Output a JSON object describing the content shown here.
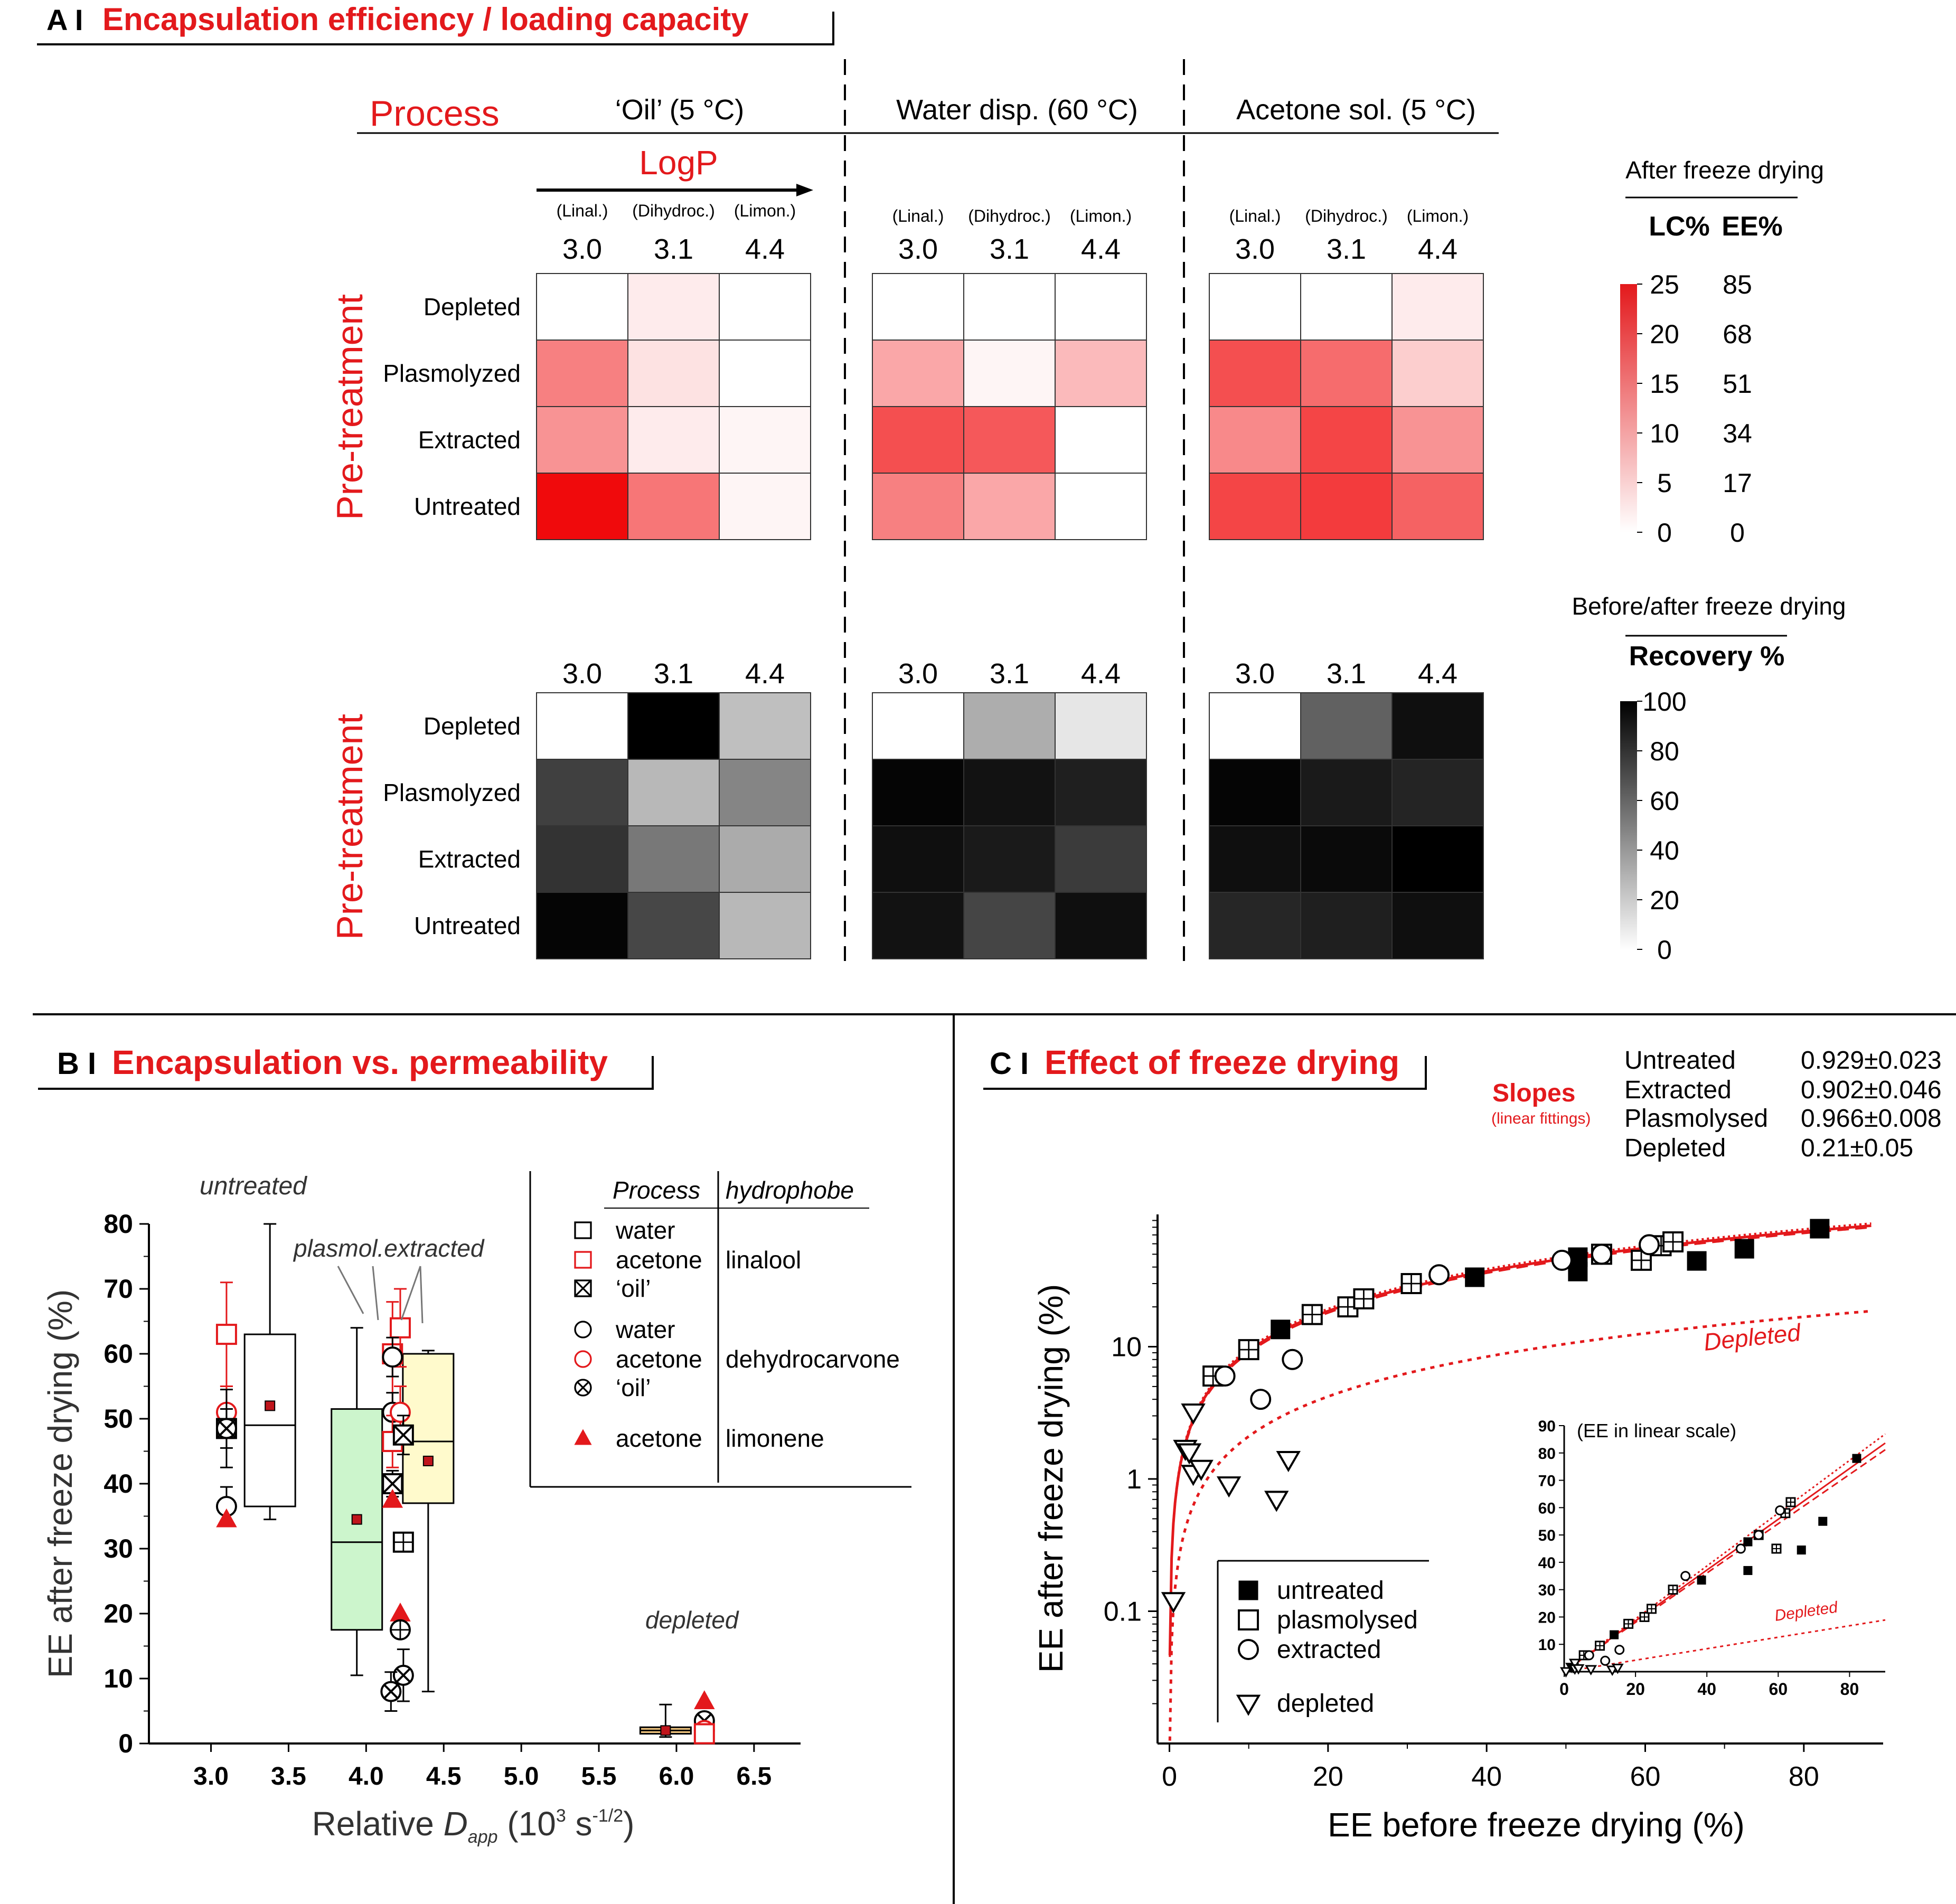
{
  "figure": {
    "panelA": {
      "letter": "A I",
      "title": "Encapsulation efficiency / loading capacity",
      "process_label": "Process",
      "processes": [
        "‘Oil’ (5 °C)",
        "Water disp. (60 °C)",
        "Acetone sol. (5 °C)"
      ],
      "logp_label": "LogP",
      "hydrophobe_short": [
        "(Linal.)",
        "(Dihydroc.)",
        "(Limon.)"
      ],
      "logp_values": [
        "3.0",
        "3.1",
        "4.4"
      ],
      "pretreatment_label": "Pre-treatment",
      "rows": [
        "Depleted",
        "Plasmolyzed",
        "Extracted",
        "Untreated"
      ],
      "legend_top": {
        "title": "After freeze drying",
        "col1": "LC%",
        "col2": "EE%",
        "lc_ticks": [
          "25",
          "20",
          "15",
          "10",
          "5",
          "0"
        ],
        "ee_ticks": [
          "85",
          "68",
          "51",
          "34",
          "17",
          "0"
        ]
      },
      "legend_bottom": {
        "title": "Before/after freeze drying",
        "subtitle": "Recovery %",
        "ticks": [
          "100",
          "80",
          "60",
          "40",
          "20",
          "0"
        ]
      },
      "colors": {
        "accent": "#e3191c",
        "dark": "#000000"
      }
    },
    "panelB": {
      "letter": "B I",
      "title": "Encapsulation vs. permeability",
      "labels": {
        "untreated": "untreated",
        "plasmol_extracted": "plasmol.extracted",
        "depleted": "depleted"
      },
      "legend": {
        "col_process": "Process",
        "col_hydrophobe": "hydrophobe",
        "rows": [
          {
            "process": "water",
            "symbol": "square",
            "color": "#000000"
          },
          {
            "process": "acetone",
            "symbol": "square",
            "color": "#e3191c"
          },
          {
            "process": "‘oil’",
            "symbol": "square-x",
            "color": "#000000"
          },
          {
            "process": "water",
            "symbol": "circle",
            "color": "#000000"
          },
          {
            "process": "acetone",
            "symbol": "circle",
            "color": "#e3191c"
          },
          {
            "process": "‘oil’",
            "symbol": "circle-x",
            "color": "#000000"
          },
          {
            "process": "acetone",
            "symbol": "triangle",
            "color": "#e3191c"
          }
        ],
        "hydrophobes": [
          "linalool",
          "dehydrocarvone",
          "limonene"
        ]
      }
    },
    "panelC": {
      "letter": "C I",
      "title": "Effect of freeze drying",
      "slopes_label": "Slopes",
      "slopes_sub": "(linear fittings)",
      "slopes": [
        {
          "name": "Untreated",
          "value": "0.929±0.023"
        },
        {
          "name": "Extracted",
          "value": "0.902±0.046"
        },
        {
          "name": "Plasmolysed",
          "value": "0.966±0.008"
        },
        {
          "name": "Depleted",
          "value": "0.21±0.05"
        }
      ],
      "depleted_label": "Depleted",
      "legend": [
        "untreated",
        "plasmolysed",
        "extracted",
        "depleted"
      ],
      "inset_title": "(EE in linear scale)",
      "inset_depleted": "Depleted"
    }
  },
  "chart_data": [
    {
      "type": "heatmap",
      "id": "A_top",
      "title": "After freeze drying (LC%)",
      "rows": [
        "Depleted",
        "Plasmolyzed",
        "Extracted",
        "Untreated"
      ],
      "columns": [
        "3.0",
        "3.1",
        "4.4"
      ],
      "groups": [
        {
          "process": "‘Oil’ (5 °C)",
          "values": [
            [
              0,
              2,
              0
            ],
            [
              13,
              3,
              0
            ],
            [
              11,
              2,
              1
            ],
            [
              25,
              14,
              1
            ]
          ]
        },
        {
          "process": "Water disp. (60 °C)",
          "values": [
            [
              0,
              0,
              0
            ],
            [
              9,
              1,
              7
            ],
            [
              18,
              17,
              0
            ],
            [
              13,
              9,
              0
            ]
          ]
        },
        {
          "process": "Acetone sol. (5 °C)",
          "values": [
            [
              0,
              0,
              2
            ],
            [
              18,
              15,
              5
            ],
            [
              12,
              19,
              11
            ],
            [
              19,
              20,
              16
            ]
          ]
        }
      ],
      "scale": {
        "min": 0,
        "max": 25
      }
    },
    {
      "type": "heatmap",
      "id": "A_bottom",
      "title": "Recovery %",
      "rows": [
        "Depleted",
        "Plasmolyzed",
        "Extracted",
        "Untreated"
      ],
      "columns": [
        "3.0",
        "3.1",
        "4.4"
      ],
      "groups": [
        {
          "process": "‘Oil’ (5 °C)",
          "values": [
            [
              0,
              100,
              25
            ],
            [
              75,
              28,
              48
            ],
            [
              80,
              53,
              33
            ],
            [
              98,
              72,
              28
            ]
          ]
        },
        {
          "process": "Water disp. (60 °C)",
          "values": [
            [
              0,
              32,
              10
            ],
            [
              98,
              93,
              88
            ],
            [
              94,
              90,
              77
            ],
            [
              93,
              73,
              94
            ]
          ]
        },
        {
          "process": "Acetone sol. (5 °C)",
          "values": [
            [
              0,
              62,
              94
            ],
            [
              98,
              90,
              86
            ],
            [
              94,
              96,
              100
            ],
            [
              85,
              88,
              94
            ]
          ]
        }
      ],
      "scale": {
        "min": 0,
        "max": 100
      }
    },
    {
      "type": "scatter",
      "id": "B",
      "title": "Encapsulation vs. permeability",
      "xlabel": "Relative Dapp (10³ s-1/2)",
      "ylabel": "EE after freeze drying (%)",
      "xlim": [
        2.6,
        6.8
      ],
      "ylim": [
        0,
        80
      ],
      "xticks": [
        "3.0",
        "3.5",
        "4.0",
        "4.5",
        "5.0",
        "5.5",
        "6.0",
        "6.5"
      ],
      "yticks": [
        "0",
        "10",
        "20",
        "30",
        "40",
        "50",
        "60",
        "70",
        "80"
      ],
      "boxes": [
        {
          "name": "untreated",
          "x": 3.38,
          "q1": 36.5,
          "median": 49,
          "q3": 63,
          "min": 34.5,
          "max": 80,
          "mean": 52,
          "fill": "#ffffff"
        },
        {
          "name": "plasmolyzed",
          "x": 3.94,
          "q1": 17.5,
          "median": 31,
          "q3": 51.5,
          "min": 10.5,
          "max": 64,
          "mean": 34.5,
          "fill": "#ccf5cc"
        },
        {
          "name": "extracted",
          "x": 4.4,
          "q1": 37,
          "median": 46.5,
          "q3": 60,
          "min": 8,
          "max": 60.5,
          "mean": 43.5,
          "fill": "#fffacc"
        },
        {
          "name": "depleted",
          "x": 5.93,
          "q1": 1.5,
          "median": 2,
          "q3": 2.5,
          "min": 1,
          "max": 6,
          "mean": 2,
          "fill": "#f5c880"
        }
      ],
      "points": [
        {
          "x": 3.1,
          "y": 63,
          "sym": "square",
          "color": "#e3191c",
          "err": 8
        },
        {
          "x": 3.1,
          "y": 51,
          "sym": "circle",
          "color": "#e3191c",
          "err": 4
        },
        {
          "x": 3.1,
          "y": 48.5,
          "sym": "square-x",
          "color": "#000000",
          "err": 3
        },
        {
          "x": 3.1,
          "y": 48.5,
          "sym": "circle-x",
          "color": "#000000",
          "err": 6
        },
        {
          "x": 3.1,
          "y": 36.5,
          "sym": "circle",
          "color": "#000000",
          "err": 3
        },
        {
          "x": 3.1,
          "y": 34.5,
          "sym": "triangle",
          "color": "#e3191c",
          "err": 0
        },
        {
          "x": 4.17,
          "y": 60,
          "sym": "square",
          "color": "#e3191c",
          "err": 8
        },
        {
          "x": 4.22,
          "y": 64,
          "sym": "square",
          "color": "#e3191c",
          "err": 6
        },
        {
          "x": 4.17,
          "y": 59.5,
          "sym": "circle",
          "color": "#000000",
          "err": 3
        },
        {
          "x": 4.17,
          "y": 51,
          "sym": "circle",
          "color": "#000000",
          "err": 3
        },
        {
          "x": 4.17,
          "y": 46.5,
          "sym": "square",
          "color": "#e3191c",
          "err": 4
        },
        {
          "x": 4.22,
          "y": 51,
          "sym": "circle",
          "color": "#e3191c",
          "err": 4
        },
        {
          "x": 4.24,
          "y": 47.5,
          "sym": "square-x",
          "color": "#000000",
          "err": 3
        },
        {
          "x": 4.17,
          "y": 40,
          "sym": "square-x",
          "color": "#000000",
          "err": 2
        },
        {
          "x": 4.17,
          "y": 37.5,
          "sym": "triangle",
          "color": "#e3191c",
          "err": 0
        },
        {
          "x": 4.24,
          "y": 31,
          "sym": "square-plus",
          "color": "#000000",
          "err": 0
        },
        {
          "x": 4.22,
          "y": 20,
          "sym": "triangle",
          "color": "#e3191c",
          "err": 0
        },
        {
          "x": 4.22,
          "y": 17.5,
          "sym": "circle-plus",
          "color": "#000000",
          "err": 0
        },
        {
          "x": 4.24,
          "y": 10.5,
          "sym": "circle-x",
          "color": "#000000",
          "err": 4
        },
        {
          "x": 4.16,
          "y": 8,
          "sym": "circle-x",
          "color": "#000000",
          "err": 3
        },
        {
          "x": 6.18,
          "y": 6.5,
          "sym": "triangle",
          "color": "#e3191c",
          "err": 0
        },
        {
          "x": 6.18,
          "y": 3.5,
          "sym": "circle-x",
          "color": "#000000",
          "err": 0
        },
        {
          "x": 6.18,
          "y": 2,
          "sym": "circle",
          "color": "#e3191c",
          "err": 0
        },
        {
          "x": 6.18,
          "y": 1.5,
          "sym": "square",
          "color": "#e3191c",
          "err": 0
        }
      ]
    },
    {
      "type": "scatter",
      "id": "C",
      "title": "Effect of freeze drying",
      "xlabel": "EE before freeze drying (%)",
      "ylabel": "EE after freeze drying (%)",
      "xscale": "linear",
      "yscale": "log",
      "xlim": [
        -1.5,
        90
      ],
      "ylim": [
        0.01,
        100
      ],
      "xticks": [
        "0",
        "20",
        "40",
        "60",
        "80"
      ],
      "yticks": [
        "0.1",
        "1",
        "10"
      ],
      "series": [
        {
          "name": "untreated",
          "sym": "filled-square",
          "points": [
            [
              14,
              13.5
            ],
            [
              38.5,
              33.5
            ],
            [
              51.5,
              47.5
            ],
            [
              51.5,
              37
            ],
            [
              66.5,
              44.5
            ],
            [
              72.5,
              55
            ],
            [
              82,
              78
            ]
          ]
        },
        {
          "name": "plasmolysed",
          "sym": "square-plus",
          "points": [
            [
              5.5,
              6
            ],
            [
              10,
              9.5
            ],
            [
              18,
              17.5
            ],
            [
              22.5,
              20
            ],
            [
              24.5,
              23
            ],
            [
              30.5,
              30
            ],
            [
              54.5,
              50
            ],
            [
              59.5,
              45
            ],
            [
              62,
              58
            ],
            [
              63.5,
              62
            ]
          ]
        },
        {
          "name": "extracted",
          "sym": "circle",
          "points": [
            [
              7,
              6
            ],
            [
              11.5,
              4
            ],
            [
              15.5,
              8
            ],
            [
              34,
              35
            ],
            [
              49.5,
              45
            ],
            [
              54.5,
              50
            ],
            [
              60.5,
              59
            ]
          ]
        },
        {
          "name": "depleted",
          "sym": "triangle-down",
          "points": [
            [
              0.5,
              0.12
            ],
            [
              2,
              1.7
            ],
            [
              2.5,
              1.6
            ],
            [
              3,
              1.1
            ],
            [
              3,
              3.2
            ],
            [
              4,
              1.2
            ],
            [
              7.5,
              0.9
            ],
            [
              13.5,
              0.7
            ],
            [
              15,
              1.4
            ]
          ]
        }
      ],
      "fits": [
        {
          "name": "solid",
          "slope": 0.929
        },
        {
          "name": "dashed",
          "slope": 0.902
        },
        {
          "name": "dotted",
          "slope": 0.966
        },
        {
          "name": "depleted",
          "slope": 0.21
        }
      ],
      "inset": {
        "xlim": [
          0,
          90
        ],
        "ylim": [
          0,
          90
        ],
        "xticks": [
          "0",
          "20",
          "40",
          "60",
          "80"
        ],
        "yticks": [
          "10",
          "20",
          "30",
          "40",
          "50",
          "60",
          "70",
          "80",
          "90"
        ]
      }
    }
  ]
}
